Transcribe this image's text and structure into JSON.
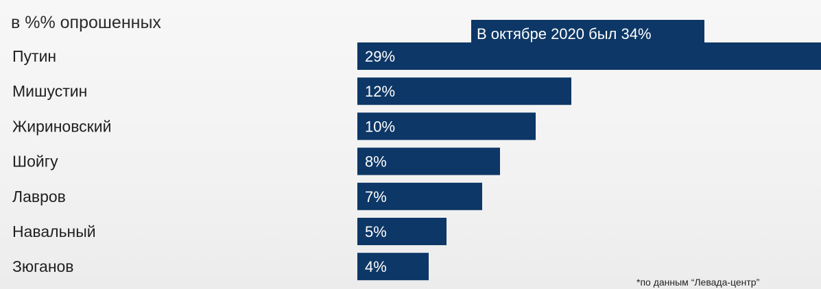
{
  "chart_data": {
    "type": "bar",
    "orientation": "horizontal",
    "unit_label": "в %% опрошенных",
    "categories": [
      "Путин",
      "Мишустин",
      "Жириновский",
      "Шойгу",
      "Лавров",
      "Навальный",
      "Зюганов"
    ],
    "values": [
      29,
      12,
      10,
      8,
      7,
      5,
      4
    ],
    "value_labels": [
      "29%",
      "12%",
      "10%",
      "8%",
      "7%",
      "5%",
      "4%"
    ],
    "annotation": "В октябре 2020 был 34%",
    "source": "*по данным “Левада-центр”",
    "bar_color": "#0d3766",
    "xlim": [
      0,
      26
    ]
  }
}
